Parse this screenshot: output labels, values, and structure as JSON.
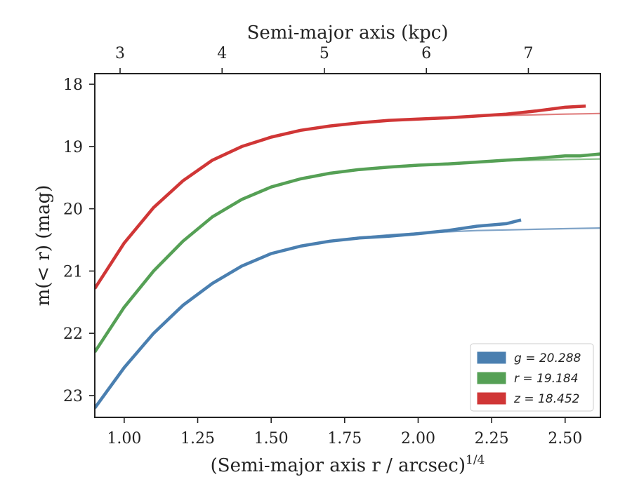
{
  "chart_data": {
    "type": "line",
    "title": "",
    "xlabel": "(Semi-major axis r / arcsec)",
    "xlabel_exponent": "1/4",
    "ylabel": "m(< r) (mag)",
    "top_xlabel": "Semi-major axis (kpc)",
    "xlim": [
      0.9,
      2.62
    ],
    "ylim": [
      23.35,
      17.83
    ],
    "y_inverted": true,
    "x_ticks": [
      1.0,
      1.25,
      1.5,
      1.75,
      2.0,
      2.25,
      2.5
    ],
    "x_tick_labels": [
      "1.00",
      "1.25",
      "1.50",
      "1.75",
      "2.00",
      "2.25",
      "2.50"
    ],
    "y_ticks": [
      18,
      19,
      20,
      21,
      22,
      23
    ],
    "y_tick_labels": [
      "18",
      "19",
      "20",
      "21",
      "22",
      "23"
    ],
    "top_ticks_kpc": [
      3,
      4,
      5,
      6,
      7
    ],
    "top_tick_labels": [
      "3",
      "4",
      "5",
      "6",
      "7"
    ],
    "top_tick_x_positions": [
      0.986,
      1.333,
      1.681,
      2.028,
      2.375
    ],
    "grid": false,
    "legend_placement": "lower-right",
    "legend": [
      {
        "label": "g = 20.288",
        "color": "#4a7fb0"
      },
      {
        "label": "r = 19.184",
        "color": "#55a055"
      },
      {
        "label": "z = 18.452",
        "color": "#d03636"
      }
    ],
    "series": [
      {
        "name": "g",
        "color": "#4a7fb0",
        "x": [
          0.9,
          1.0,
          1.1,
          1.2,
          1.3,
          1.4,
          1.5,
          1.6,
          1.7,
          1.8,
          1.9,
          2.0,
          2.1,
          2.2,
          2.3,
          2.35
        ],
        "y": [
          23.2,
          22.55,
          22.0,
          21.55,
          21.2,
          20.92,
          20.72,
          20.6,
          20.52,
          20.47,
          20.44,
          20.4,
          20.35,
          20.28,
          20.24,
          20.18
        ]
      },
      {
        "name": "r",
        "color": "#55a055",
        "x": [
          0.9,
          1.0,
          1.1,
          1.2,
          1.3,
          1.4,
          1.5,
          1.6,
          1.7,
          1.8,
          1.9,
          2.0,
          2.1,
          2.2,
          2.3,
          2.4,
          2.5,
          2.55,
          2.62
        ],
        "y": [
          22.3,
          21.58,
          21.0,
          20.52,
          20.13,
          19.85,
          19.65,
          19.52,
          19.43,
          19.37,
          19.33,
          19.3,
          19.28,
          19.25,
          19.22,
          19.19,
          19.15,
          19.15,
          19.12
        ]
      },
      {
        "name": "z",
        "color": "#d03636",
        "x": [
          0.9,
          1.0,
          1.1,
          1.2,
          1.3,
          1.4,
          1.5,
          1.6,
          1.7,
          1.8,
          1.9,
          2.0,
          2.1,
          2.2,
          2.3,
          2.4,
          2.5,
          2.57
        ],
        "y": [
          21.28,
          20.55,
          19.98,
          19.55,
          19.22,
          19.0,
          18.85,
          18.74,
          18.67,
          18.62,
          18.58,
          18.56,
          18.54,
          18.51,
          18.48,
          18.43,
          18.37,
          18.35
        ]
      }
    ],
    "model_fits": [
      {
        "name": "g-model",
        "color": "#7fa3c7",
        "x": [
          0.9,
          1.0,
          1.1,
          1.2,
          1.3,
          1.4,
          1.5,
          1.6,
          1.7,
          1.8,
          1.9,
          2.0,
          2.1,
          2.2,
          2.3,
          2.4,
          2.5,
          2.62
        ],
        "y": [
          23.2,
          22.55,
          22.0,
          21.55,
          21.2,
          20.92,
          20.72,
          20.6,
          20.52,
          20.46,
          20.42,
          20.39,
          20.37,
          20.35,
          20.34,
          20.33,
          20.32,
          20.31
        ]
      },
      {
        "name": "r-model",
        "color": "#8cc08c",
        "x": [
          0.9,
          1.0,
          1.1,
          1.2,
          1.3,
          1.4,
          1.5,
          1.6,
          1.7,
          1.8,
          1.9,
          2.0,
          2.1,
          2.2,
          2.3,
          2.4,
          2.5,
          2.62
        ],
        "y": [
          22.3,
          21.58,
          21.0,
          20.52,
          20.13,
          19.85,
          19.65,
          19.52,
          19.43,
          19.37,
          19.32,
          19.29,
          19.27,
          19.25,
          19.23,
          19.22,
          19.21,
          19.2
        ]
      },
      {
        "name": "z-model",
        "color": "#e07f7f",
        "x": [
          0.9,
          1.0,
          1.1,
          1.2,
          1.3,
          1.4,
          1.5,
          1.6,
          1.7,
          1.8,
          1.9,
          2.0,
          2.1,
          2.2,
          2.3,
          2.4,
          2.5,
          2.62
        ],
        "y": [
          21.28,
          20.55,
          19.98,
          19.55,
          19.22,
          19.0,
          18.85,
          18.74,
          18.67,
          18.62,
          18.58,
          18.55,
          18.53,
          18.51,
          18.5,
          18.49,
          18.48,
          18.47
        ]
      }
    ]
  }
}
